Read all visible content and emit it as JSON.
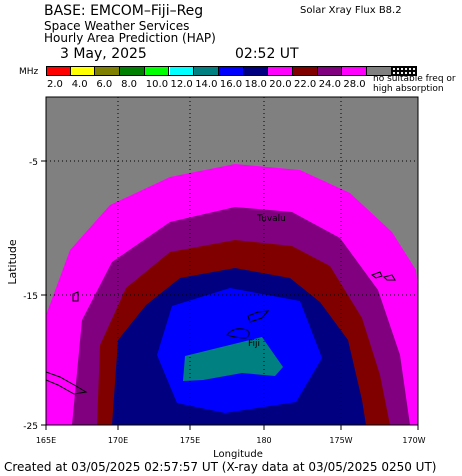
{
  "header": {
    "base_title": "BASE: EMCOM–Fiji–Reg",
    "org": "Space Weather Services",
    "product": "Hourly Area Prediction (HAP)",
    "date": "3 May, 2025",
    "time": "02:52 UT",
    "flux": "Solar Xray Flux B8.2"
  },
  "legend": {
    "unit": "MHz",
    "colors": [
      "#ff0000",
      "#ffff00",
      "#808000",
      "#008000",
      "#00ff00",
      "#00ffff",
      "#008080",
      "#0000ff",
      "#000080",
      "#ff00ff",
      "#800000",
      "#800080",
      "#ff00ff",
      "#808080",
      "#000000"
    ],
    "labels": [
      "2.0",
      "4.0",
      "6.0",
      "8.0",
      "10.0",
      "12.0",
      "14.0",
      "16.0",
      "18.0",
      "20.0",
      "22.0",
      "24.0",
      "28.0"
    ],
    "no_freq_line1": "no suitable freq or",
    "no_freq_line2": "high absorption"
  },
  "map": {
    "latitude_label": "Latitude",
    "longitude_label": "Longitude",
    "lat_ticks": [
      "-5",
      "-15",
      "-25"
    ],
    "lon_ticks": [
      "165E",
      "170E",
      "175E",
      "180",
      "175W",
      "170W"
    ],
    "places": {
      "tuvalu": "Tuvalu",
      "fiji": "Fiji"
    },
    "zone_colors": {
      "background": "#808080",
      "z28": "#ff00ff",
      "z24": "#800080",
      "z22": "#800000",
      "z18": "#000080",
      "z16": "#0000ff",
      "z14": "#008080"
    }
  },
  "footer": "Created at 03/05/2025 02:57:57 UT (X-ray data at 03/05/2025 0250 UT)"
}
